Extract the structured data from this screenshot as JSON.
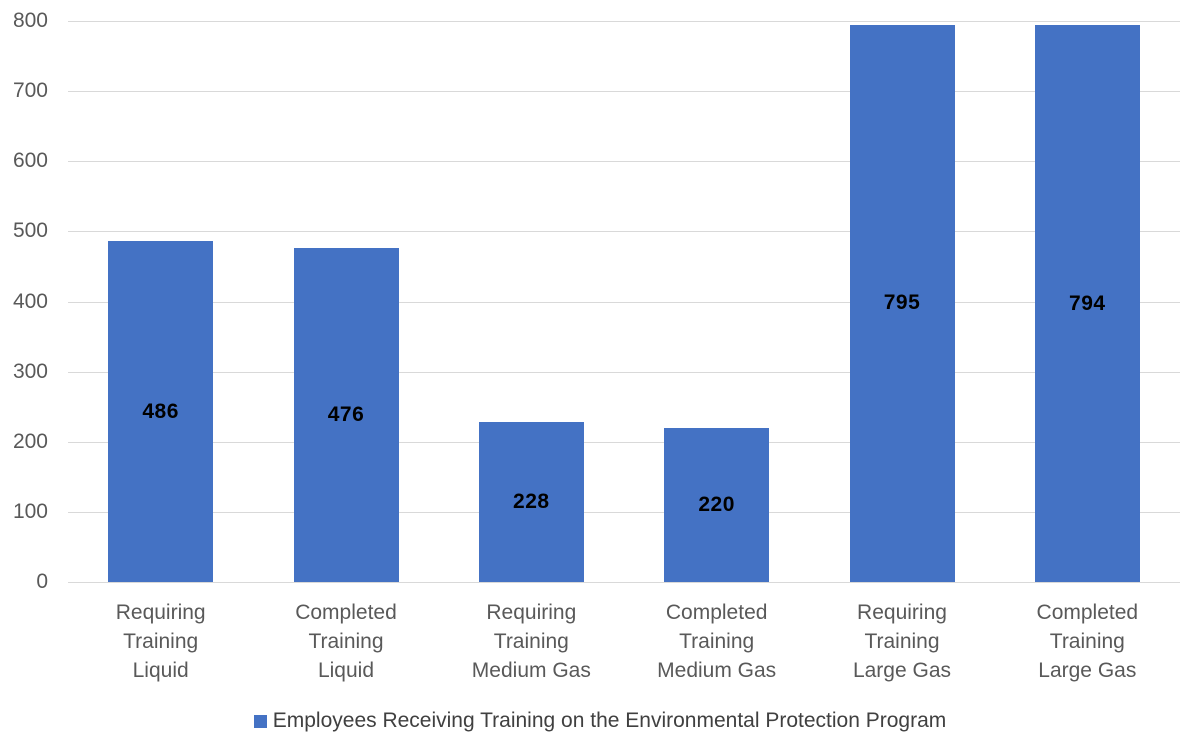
{
  "chart_data": {
    "type": "bar",
    "title": "",
    "categories": [
      "Requiring\nTraining\nLiquid",
      "Completed\nTraining\nLiquid",
      "Requiring\nTraining\nMedium Gas",
      "Completed\nTraining\nMedium Gas",
      "Requiring\nTraining\nLarge Gas",
      "Completed\nTraining\nLarge Gas"
    ],
    "series": [
      {
        "name": "Employees Receiving Training on the Environmental Protection Program",
        "values": [
          486,
          476,
          228,
          220,
          795,
          794
        ]
      }
    ],
    "data_labels": [
      "486",
      "476",
      "228",
      "220",
      "795",
      "794"
    ],
    "xlabel": "",
    "ylabel": "",
    "ylim": [
      0,
      800
    ],
    "yticks": [
      0,
      100,
      200,
      300,
      400,
      500,
      600,
      700,
      800
    ],
    "grid": "horizontal",
    "legend_position": "bottom",
    "colors": {
      "bar": "#4472C4",
      "gridline": "#D9D9D9",
      "axis_text": "#595959",
      "data_label": "#000000",
      "legend_text": "#404040",
      "background": "#FFFFFF"
    }
  }
}
